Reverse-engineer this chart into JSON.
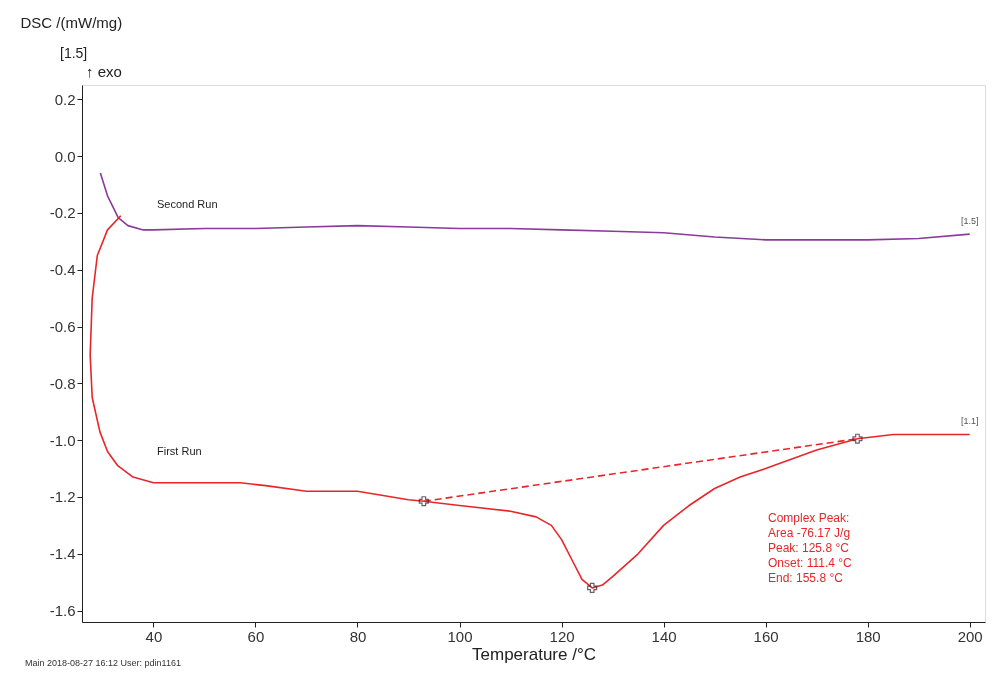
{
  "chart_data": {
    "type": "line",
    "xlabel": "Temperature /°C",
    "ylabel": "DSC /(mW/mg)",
    "xlim": [
      26,
      203
    ],
    "ylim": [
      -1.64,
      0.25
    ],
    "xticks": [
      40,
      60,
      80,
      100,
      120,
      140,
      160,
      180,
      200
    ],
    "yticks": [
      {
        "value": 0.2,
        "label": "0.2"
      },
      {
        "value": 0,
        "label": "0.0"
      },
      {
        "value": -0.2,
        "label": "-0.2"
      },
      {
        "value": -0.4,
        "label": "-0.4"
      },
      {
        "value": -0.6,
        "label": "-0.6"
      },
      {
        "value": -0.8,
        "label": "-0.8"
      },
      {
        "value": -1.0,
        "label": "-1.0"
      },
      {
        "value": -1.2,
        "label": "-1.2"
      },
      {
        "value": -1.4,
        "label": "-1.4"
      },
      {
        "value": -1.6,
        "label": "-1.6"
      }
    ],
    "grid": false,
    "line_style": "solid",
    "marker": "none",
    "series": [
      {
        "name": "Second Run",
        "color": "#8a3a9a",
        "x": [
          29.6,
          31,
          33.1,
          35,
          38,
          40,
          50,
          60,
          70,
          80,
          90,
          100,
          110,
          120,
          130,
          140,
          150,
          160,
          170,
          180,
          190,
          200
        ],
        "values": [
          -0.06,
          -0.14,
          -0.217,
          -0.245,
          -0.26,
          -0.26,
          -0.255,
          -0.255,
          -0.25,
          -0.245,
          -0.25,
          -0.255,
          -0.255,
          -0.26,
          -0.265,
          -0.27,
          -0.285,
          -0.295,
          -0.295,
          -0.295,
          -0.29,
          -0.275
        ]
      },
      {
        "name": "First Run",
        "color": "#e8262a",
        "x": [
          33.6,
          31,
          29,
          28,
          27.6,
          28,
          29.5,
          31,
          33,
          36,
          40,
          50,
          57,
          62,
          70,
          80,
          90,
          93,
          100,
          110,
          115,
          118,
          120,
          122,
          124,
          126,
          128,
          130,
          135,
          140,
          145,
          150,
          155,
          160,
          170,
          178,
          185,
          200
        ],
        "values": [
          -0.21,
          -0.26,
          -0.35,
          -0.5,
          -0.7,
          -0.85,
          -0.97,
          -1.04,
          -1.09,
          -1.13,
          -1.15,
          -1.15,
          -1.15,
          -1.16,
          -1.18,
          -1.18,
          -1.21,
          -1.215,
          -1.23,
          -1.25,
          -1.27,
          -1.3,
          -1.35,
          -1.42,
          -1.49,
          -1.52,
          -1.51,
          -1.48,
          -1.4,
          -1.3,
          -1.23,
          -1.17,
          -1.13,
          -1.1,
          -1.035,
          -0.995,
          -0.98,
          -0.98
        ]
      },
      {
        "color": "#e8262a",
        "line_style": "dashed",
        "x": [
          93,
          178
        ],
        "values": [
          -1.215,
          -0.995
        ]
      },
      {
        "type": "scatter",
        "marker": "cross",
        "color": "#222222",
        "x": [
          93,
          126,
          178
        ],
        "values": [
          -1.215,
          -1.52,
          -0.995
        ]
      }
    ],
    "annotations": [
      "[1.5]",
      "↑ exo",
      {
        "text": "[1.5]",
        "x": 200,
        "y": -0.275
      },
      {
        "text": "[1.1]",
        "x": 200,
        "y": -0.98
      },
      "Complex Peak:\nArea     -76.17 J/g\nPeak:   125.8 °C\nOnset:  111.4 °C\nEnd:     155.8 °C",
      "Main   2018-08-27 16:12   User: pdin1161"
    ]
  }
}
